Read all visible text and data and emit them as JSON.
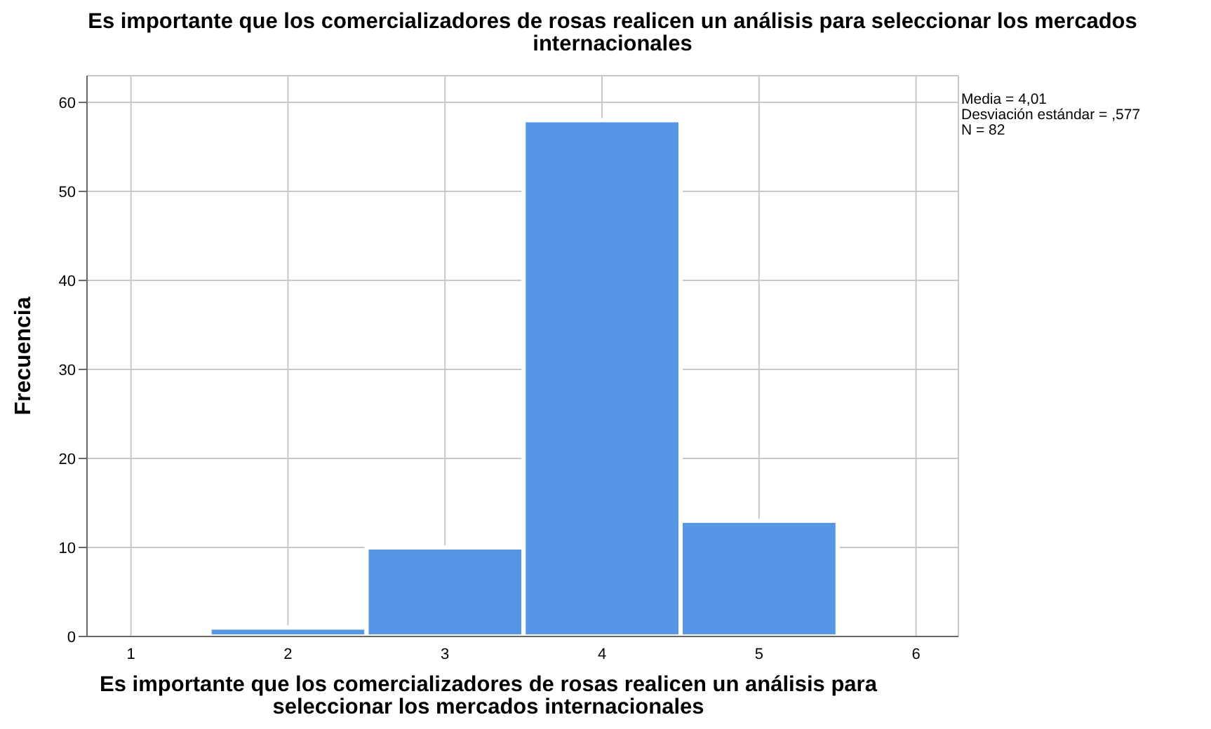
{
  "chart_data": {
    "type": "histogram",
    "title": "Es importante que los comercializadores de rosas realicen un análisis para seleccionar los mercados internacionales",
    "xlabel": "Es importante que los comercializadores de rosas realicen un análisis para seleccionar los mercados internacionales",
    "ylabel": "Frecuencia",
    "bins": [
      1.5,
      2.5,
      3.5,
      4.5,
      5.5
    ],
    "values": [
      1,
      10,
      58,
      13
    ],
    "color": "#5596e6",
    "xlim": [
      0.72,
      6.27
    ],
    "xticks": [
      1,
      2,
      3,
      4,
      5,
      6
    ],
    "ylim": [
      0,
      63
    ],
    "yticks": [
      0,
      10,
      20,
      30,
      40,
      50,
      60
    ],
    "grid": true,
    "annotations": [
      "Media = 4,01",
      "Desviación estándar = ,577",
      "N = 82"
    ]
  }
}
